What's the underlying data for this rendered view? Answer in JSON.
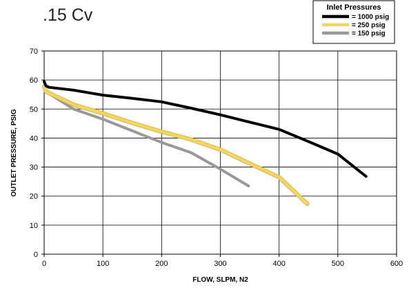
{
  "chart_data": {
    "type": "line",
    "title": ".15 Cv",
    "xlabel": "FLOW, SLPM, N2",
    "ylabel": "OUTLET PRESSURE, PSIG",
    "xlim": [
      0,
      600
    ],
    "ylim": [
      0,
      70
    ],
    "xticks": [
      0,
      100,
      200,
      300,
      400,
      500,
      600
    ],
    "yticks": [
      0,
      10,
      20,
      30,
      40,
      50,
      60,
      70
    ],
    "grid": true,
    "legend": {
      "title": "Inlet Pressures",
      "placement": "top-right"
    },
    "series": [
      {
        "name": "= 1000 psig",
        "color": "#000000",
        "x": [
          0,
          3,
          8,
          50,
          100,
          150,
          200,
          250,
          300,
          350,
          400,
          450,
          500,
          548
        ],
        "y": [
          59.5,
          58,
          57.5,
          56.5,
          54.8,
          53.7,
          52.5,
          50.3,
          48,
          45.5,
          43,
          38.8,
          34.5,
          26.8
        ]
      },
      {
        "name": "= 250 psig",
        "color": "#f5d55e",
        "x": [
          0,
          3,
          50,
          100,
          150,
          200,
          250,
          300,
          350,
          400,
          448
        ],
        "y": [
          57.8,
          56,
          51.5,
          48.5,
          45.2,
          42.2,
          39.5,
          36,
          31.2,
          26.5,
          17.3
        ]
      },
      {
        "name": "= 150 psig",
        "color": "#999999",
        "x": [
          0,
          3,
          50,
          100,
          150,
          200,
          250,
          300,
          348
        ],
        "y": [
          58,
          56,
          50,
          46.5,
          42.5,
          38.5,
          35,
          29.3,
          23.5
        ]
      }
    ]
  }
}
